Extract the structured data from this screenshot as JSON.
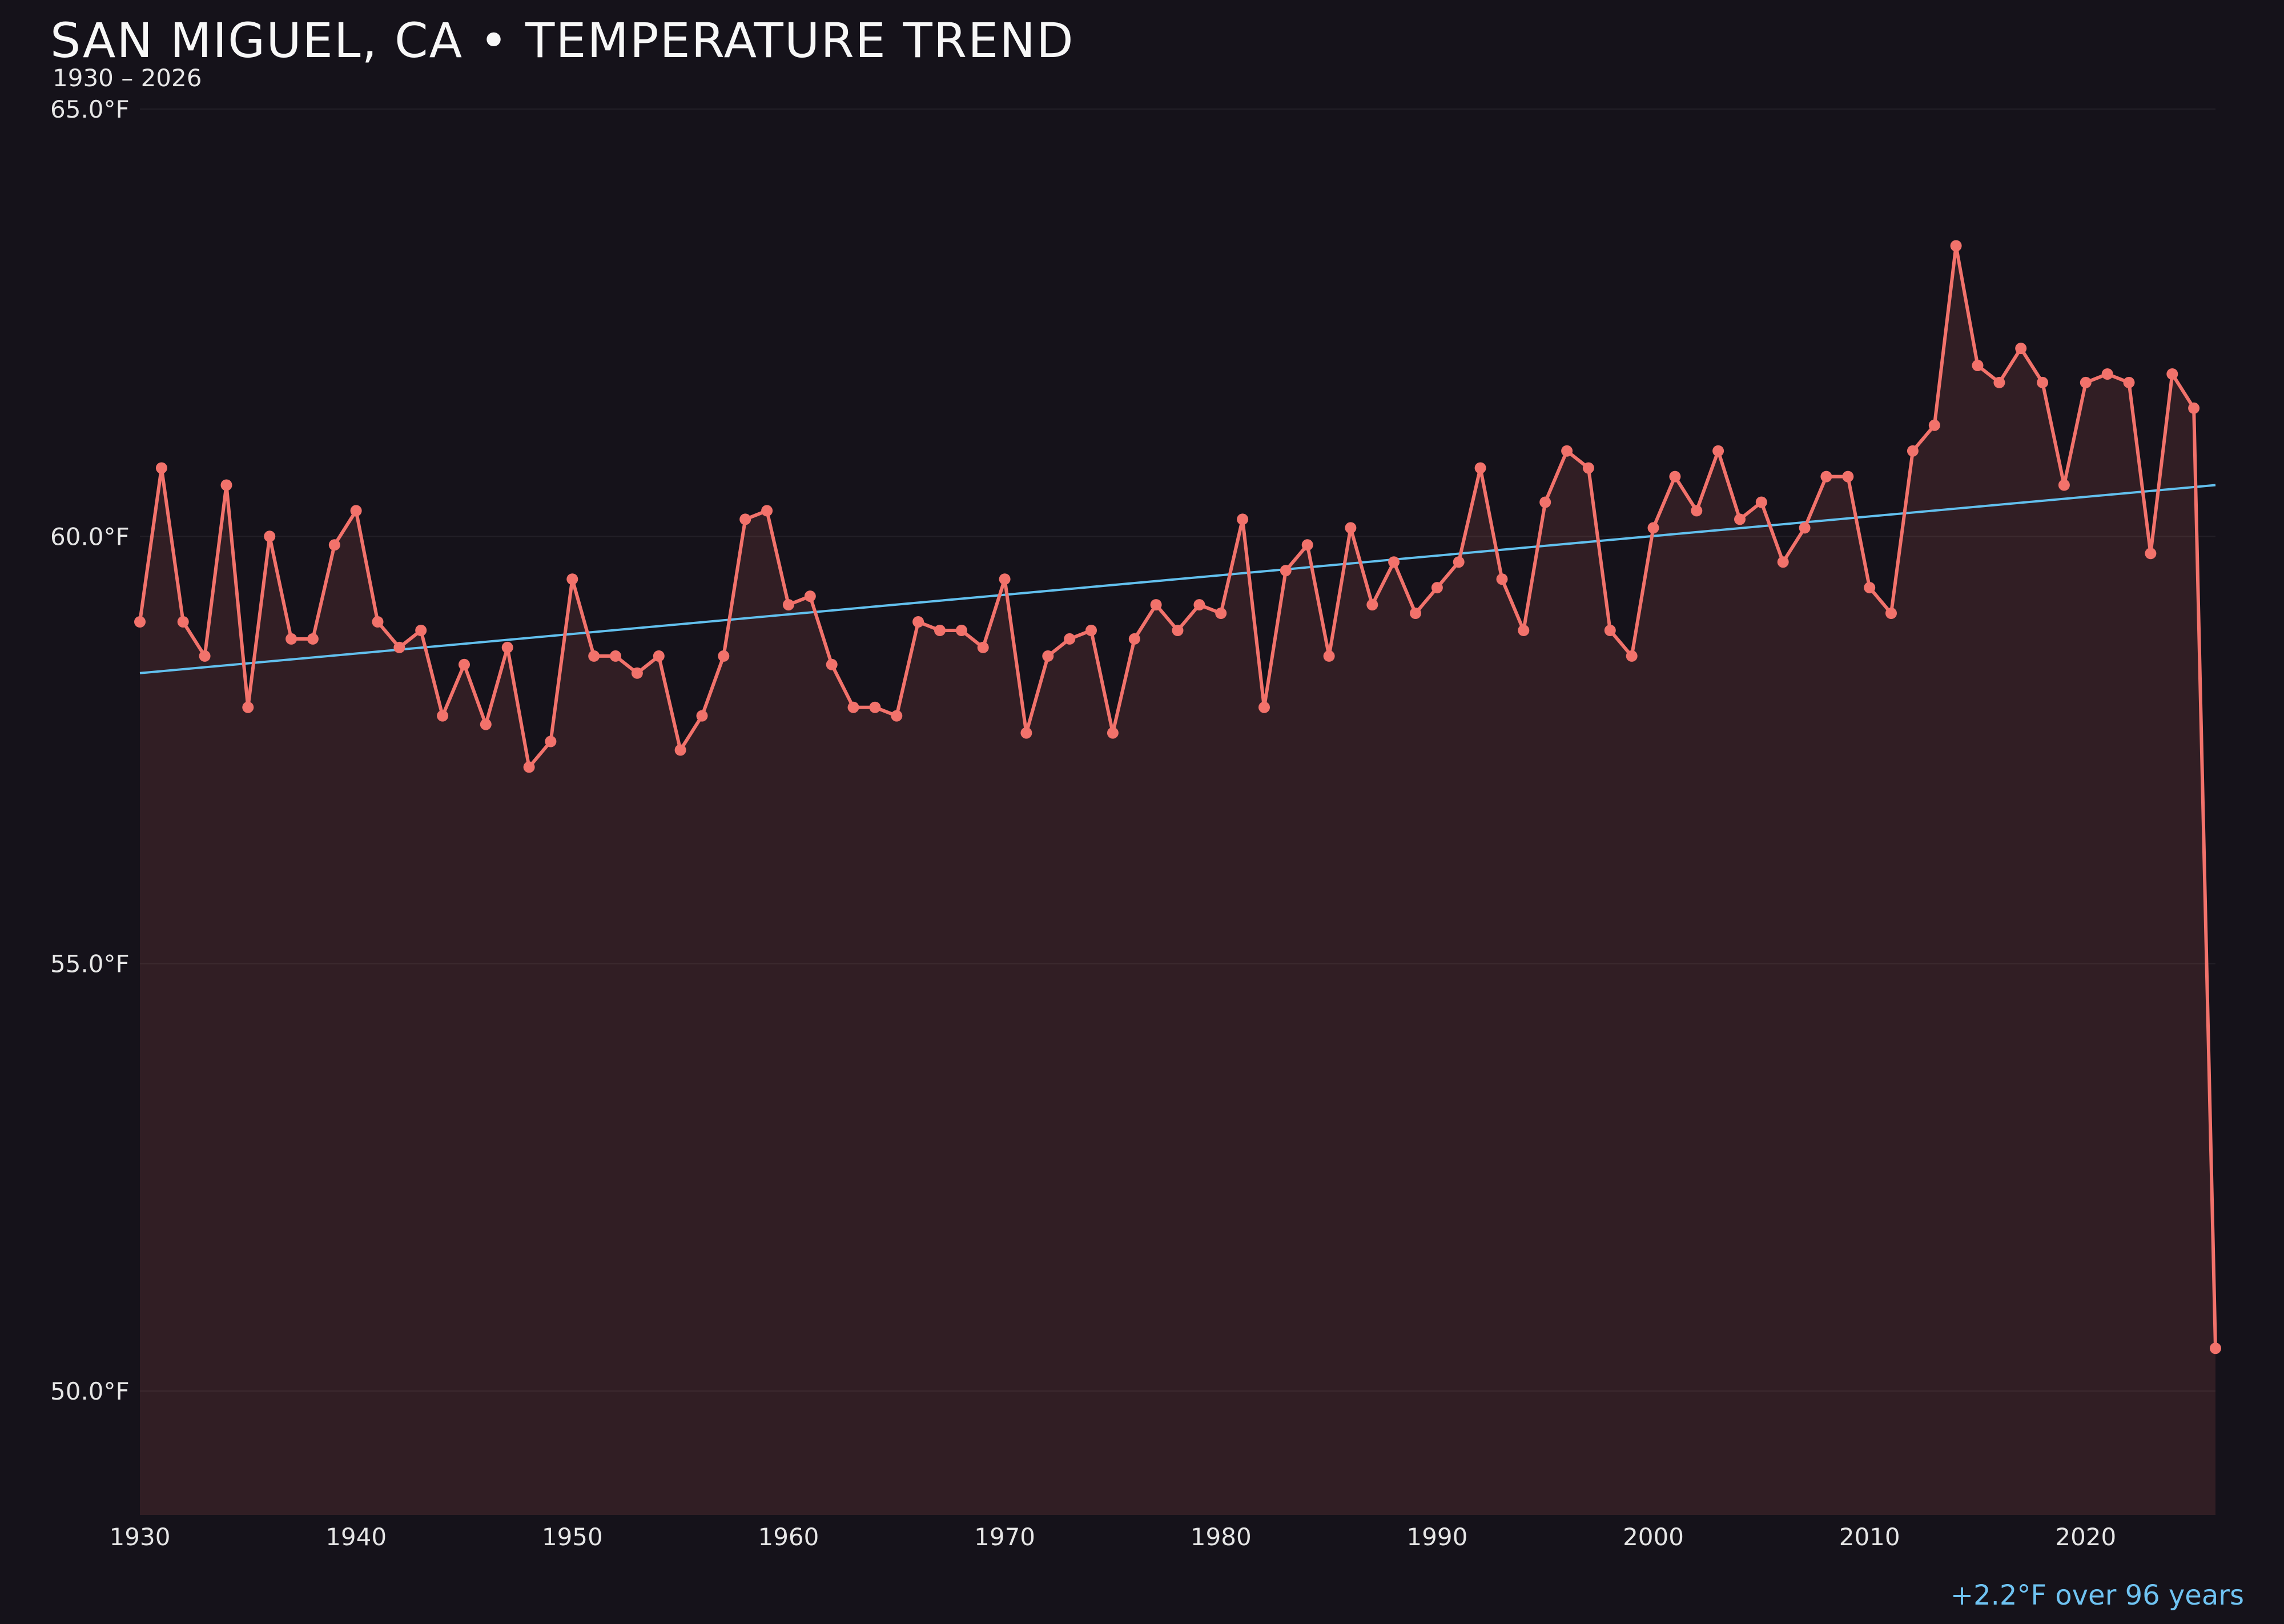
{
  "header": {
    "title": "SAN MIGUEL, CA • TEMPERATURE TREND",
    "subtitle": "1930 – 2026"
  },
  "annotation": {
    "text": "+2.2°F over 96 years"
  },
  "colors": {
    "background": "#15121a",
    "series_line": "#f2726b",
    "series_fill": "rgba(242,114,107,0.13)",
    "trend_line": "#62c0ee",
    "tick_text": "#e6e6e6",
    "grid": "rgba(255,255,255,0.06)",
    "annotation_text": "#6fc3f2"
  },
  "chart_data": {
    "type": "line",
    "title": "SAN MIGUEL, CA • TEMPERATURE TREND",
    "subtitle": "1930 – 2026",
    "xlabel": "",
    "ylabel": "°F",
    "legend": null,
    "grid": "faint-horizontal",
    "x_range": [
      1930,
      2026
    ],
    "ylim_display": [
      48.5,
      65.0
    ],
    "y_ticks": [
      {
        "value": 65.0,
        "label": "65.0°F"
      },
      {
        "value": 60.0,
        "label": "60.0°F"
      },
      {
        "value": 55.0,
        "label": "55.0°F"
      },
      {
        "value": 50.0,
        "label": "50.0°F"
      }
    ],
    "x_ticks": [
      1930,
      1940,
      1950,
      1960,
      1970,
      1980,
      1990,
      2000,
      2010,
      2020
    ],
    "years": [
      1930,
      1931,
      1932,
      1933,
      1934,
      1935,
      1936,
      1937,
      1938,
      1939,
      1940,
      1941,
      1942,
      1943,
      1944,
      1945,
      1946,
      1947,
      1948,
      1949,
      1950,
      1951,
      1952,
      1953,
      1954,
      1955,
      1956,
      1957,
      1958,
      1959,
      1960,
      1961,
      1962,
      1963,
      1964,
      1965,
      1966,
      1967,
      1968,
      1969,
      1970,
      1971,
      1972,
      1973,
      1974,
      1975,
      1976,
      1977,
      1978,
      1979,
      1980,
      1981,
      1982,
      1983,
      1984,
      1985,
      1986,
      1987,
      1988,
      1989,
      1990,
      1991,
      1992,
      1993,
      1994,
      1995,
      1996,
      1997,
      1998,
      1999,
      2000,
      2001,
      2002,
      2003,
      2004,
      2005,
      2006,
      2007,
      2008,
      2009,
      2010,
      2011,
      2012,
      2013,
      2014,
      2015,
      2016,
      2017,
      2018,
      2019,
      2020,
      2021,
      2022,
      2023,
      2024,
      2025,
      2026
    ],
    "values": [
      59.0,
      60.8,
      59.0,
      58.6,
      60.6,
      58.0,
      60.0,
      58.8,
      58.8,
      59.9,
      60.3,
      59.0,
      58.7,
      58.9,
      57.9,
      58.5,
      57.8,
      58.7,
      57.3,
      57.6,
      59.5,
      58.6,
      58.6,
      58.4,
      58.6,
      57.5,
      57.9,
      58.6,
      60.2,
      60.3,
      59.2,
      59.3,
      58.5,
      58.0,
      58.0,
      57.9,
      59.0,
      58.9,
      58.9,
      58.7,
      59.5,
      57.7,
      58.6,
      58.8,
      58.9,
      57.7,
      58.8,
      59.2,
      58.9,
      59.2,
      59.1,
      60.2,
      58.0,
      59.6,
      59.9,
      58.6,
      60.1,
      59.2,
      59.7,
      59.1,
      59.4,
      59.7,
      60.8,
      59.5,
      58.9,
      60.4,
      61.0,
      60.8,
      58.9,
      58.6,
      60.1,
      60.7,
      60.3,
      61.0,
      60.2,
      60.4,
      59.7,
      60.1,
      60.7,
      60.7,
      59.4,
      59.1,
      61.0,
      61.3,
      63.4,
      62.0,
      61.8,
      62.2,
      61.8,
      60.6,
      61.8,
      61.9,
      61.8,
      59.8,
      61.9,
      61.5,
      50.5
    ],
    "trend": {
      "start_year": 1930,
      "end_year": 2026,
      "start_value": 58.4,
      "end_value": 60.6,
      "delta_label": "+2.2°F over 96 years"
    }
  }
}
